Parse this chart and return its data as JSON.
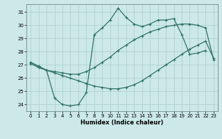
{
  "title": "",
  "xlabel": "Humidex (Indice chaleur)",
  "bg_color": "#cce8e8",
  "grid_color": "#aacccc",
  "line_color": "#2d7068",
  "xlim": [
    -0.5,
    23.5
  ],
  "ylim": [
    23.5,
    31.6
  ],
  "xticks": [
    0,
    1,
    2,
    3,
    4,
    5,
    6,
    7,
    8,
    9,
    10,
    11,
    12,
    13,
    14,
    15,
    16,
    17,
    18,
    19,
    20,
    21,
    22,
    23
  ],
  "yticks": [
    24,
    25,
    26,
    27,
    28,
    29,
    30,
    31
  ],
  "line1_x": [
    0,
    1,
    2,
    3,
    4,
    5,
    6,
    7,
    8,
    9,
    10,
    11,
    12,
    13,
    14,
    15,
    16,
    17,
    18,
    19,
    20,
    21,
    22,
    23
  ],
  "line1_y": [
    27.1,
    26.8,
    26.6,
    26.5,
    26.4,
    26.3,
    26.3,
    26.5,
    26.8,
    27.2,
    27.6,
    28.1,
    28.5,
    28.9,
    29.2,
    29.5,
    29.7,
    29.9,
    30.0,
    30.1,
    30.1,
    30.0,
    29.8,
    27.4
  ],
  "line2_x": [
    0,
    1,
    2,
    3,
    4,
    5,
    6,
    7,
    8,
    9,
    10,
    11,
    12,
    13,
    14,
    15,
    16,
    17,
    18,
    19,
    20,
    21,
    22,
    23
  ],
  "line2_y": [
    27.2,
    26.9,
    26.6,
    26.4,
    26.2,
    26.0,
    25.8,
    25.6,
    25.4,
    25.3,
    25.2,
    25.2,
    25.3,
    25.5,
    25.8,
    26.2,
    26.6,
    27.0,
    27.4,
    27.8,
    28.2,
    28.5,
    28.8,
    27.5
  ],
  "line3_x": [
    0,
    1,
    2,
    3,
    4,
    5,
    6,
    7,
    8,
    9,
    10,
    11,
    12,
    13,
    14,
    15,
    16,
    17,
    18,
    19,
    20,
    21,
    22
  ],
  "line3_y": [
    27.2,
    26.9,
    26.6,
    24.5,
    24.0,
    23.9,
    24.0,
    24.9,
    29.3,
    29.8,
    30.4,
    31.3,
    30.6,
    30.1,
    29.9,
    30.1,
    30.4,
    30.4,
    30.5,
    29.3,
    27.8,
    27.9,
    28.1
  ]
}
